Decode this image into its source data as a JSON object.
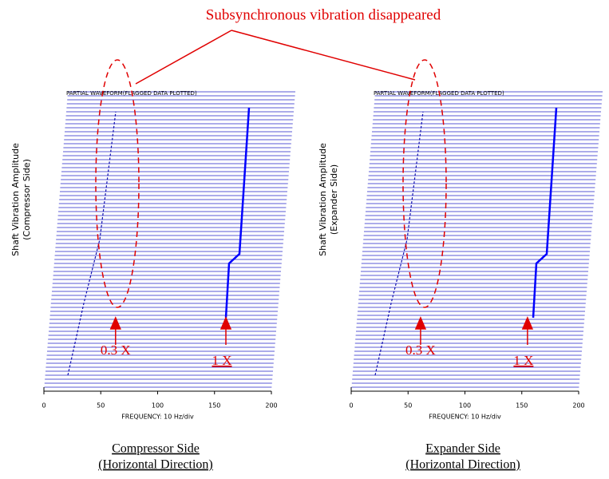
{
  "title": "Subsynchronous vibration disappeared",
  "chart_data": [
    {
      "type": "waterfall",
      "header": "PARTIAL WAVEFORM(FLAGGED DATA PLOTTED)",
      "ylabel": [
        "Shaft Vibration Amplitude",
        "(Compressor Side)"
      ],
      "xlabel": "FREQUENCY: 10 Hz/div",
      "xlim": [
        0,
        200
      ],
      "xticks": [
        0,
        50,
        100,
        150,
        200
      ],
      "annotations": [
        {
          "text": "0.3 X",
          "x": 63
        },
        {
          "text": "1 X",
          "x": 160
        }
      ],
      "caption": [
        "Compressor Side",
        "(Horizontal Direction)"
      ]
    },
    {
      "type": "waterfall",
      "header": "PARTIAL WAVEFORM(FLAGGED DATA PLOTTED)",
      "ylabel": [
        "Shaft Vibration Amplitude",
        "(Expander Side)"
      ],
      "xlabel": "FREQUENCY: 10 Hz/div",
      "xlim": [
        0,
        200
      ],
      "xticks": [
        0,
        50,
        100,
        150,
        200
      ],
      "annotations": [
        {
          "text": "0.3 X",
          "x": 61
        },
        {
          "text": "1 X",
          "x": 155
        }
      ],
      "caption": [
        "Expander Side",
        "(Horizontal Direction)"
      ]
    }
  ]
}
